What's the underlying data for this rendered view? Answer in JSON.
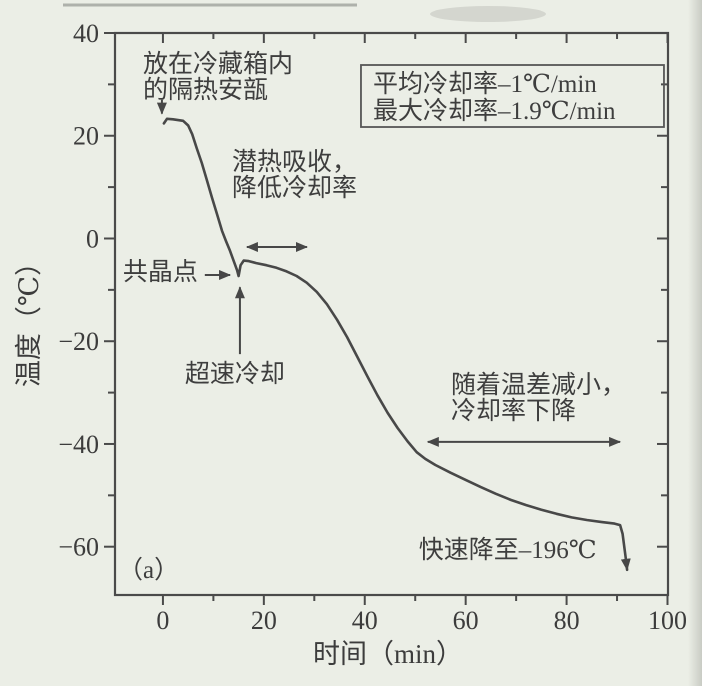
{
  "figure_label": "（a）",
  "chart_data": {
    "type": "line",
    "title": "",
    "xlabel": "时间（min）",
    "ylabel": "温度（℃）",
    "xlim": [
      -9.5,
      100.1
    ],
    "ylim": [
      -69.4,
      40
    ],
    "grid": false,
    "x_major_ticks": [
      0,
      20,
      40,
      60,
      80,
      100
    ],
    "x_minor_ticks": [
      10,
      30,
      50,
      70,
      90
    ],
    "y_major_ticks": [
      40,
      20,
      0,
      -20,
      -40,
      -60
    ],
    "y_minor_ticks": [
      30,
      10,
      -10,
      -30,
      -50
    ],
    "series": [
      {
        "name": "cooling-curve",
        "points": [
          [
            0.2,
            22.4
          ],
          [
            0.8,
            23.3
          ],
          [
            2.0,
            23.2
          ],
          [
            4.0,
            22.9
          ],
          [
            5.0,
            22.0
          ],
          [
            5.8,
            20.3
          ],
          [
            6.7,
            17.6
          ],
          [
            7.7,
            14.7
          ],
          [
            8.7,
            11.4
          ],
          [
            9.7,
            8.0
          ],
          [
            10.7,
            4.8
          ],
          [
            11.7,
            1.5
          ],
          [
            12.5,
            -0.5
          ],
          [
            13.3,
            -2.4
          ],
          [
            14.1,
            -4.6
          ],
          [
            14.7,
            -6.2
          ],
          [
            15.0,
            -7.3
          ],
          [
            15.4,
            -5.2
          ],
          [
            16.0,
            -4.3
          ],
          [
            17.0,
            -4.4
          ],
          [
            18.5,
            -4.8
          ],
          [
            20.5,
            -5.2
          ],
          [
            22.5,
            -5.7
          ],
          [
            24.5,
            -6.4
          ],
          [
            26.5,
            -7.3
          ],
          [
            28.5,
            -8.6
          ],
          [
            30.5,
            -10.4
          ],
          [
            32.5,
            -12.8
          ],
          [
            34.5,
            -15.8
          ],
          [
            36.5,
            -19.2
          ],
          [
            38.5,
            -23.0
          ],
          [
            40.5,
            -26.8
          ],
          [
            42.5,
            -30.5
          ],
          [
            44.5,
            -33.9
          ],
          [
            46.5,
            -36.9
          ],
          [
            48.5,
            -39.5
          ],
          [
            50.3,
            -41.6
          ],
          [
            52.0,
            -42.9
          ],
          [
            54.0,
            -44.1
          ],
          [
            57.0,
            -45.6
          ],
          [
            60.0,
            -47.0
          ],
          [
            63.0,
            -48.4
          ],
          [
            66.0,
            -49.7
          ],
          [
            69.0,
            -50.9
          ],
          [
            72.0,
            -51.9
          ],
          [
            75.0,
            -52.8
          ],
          [
            78.0,
            -53.6
          ],
          [
            81.0,
            -54.3
          ],
          [
            84.0,
            -54.8
          ],
          [
            87.0,
            -55.2
          ],
          [
            89.5,
            -55.5
          ],
          [
            90.6,
            -55.8
          ],
          [
            91.1,
            -57.5
          ],
          [
            91.7,
            -62.0
          ],
          [
            92.0,
            -64.5
          ]
        ],
        "end_arrow": true
      }
    ],
    "info_box": {
      "lines": [
        "平均冷却率–1℃/min",
        "最大冷却率–1.9℃/min"
      ],
      "x1": 39.25,
      "y1": 33.77,
      "x2": 99.3,
      "y2": 21.7
    },
    "annotations": [
      {
        "id": "ampoule-label",
        "lines": [
          "放在冷藏箱内",
          "的隔热安瓿"
        ],
        "x": -3.96,
        "y": 36.7,
        "arrow": {
          "x1": -0.2,
          "y1": 27.0,
          "x2": -0.2,
          "y2": 24.3
        }
      },
      {
        "id": "latent-heat-label",
        "lines": [
          "潜热吸收，",
          "降低冷却率"
        ],
        "x": 13.68,
        "y": 17.6
      },
      {
        "id": "latent-range-arrow",
        "type": "double-arrow",
        "x1": 16.65,
        "x2": 28.54,
        "y": -1.66
      },
      {
        "id": "eutectic-label",
        "lines": [
          "共晶点"
        ],
        "x": -7.93,
        "y": -3.8,
        "arrow": {
          "x1": 8.3,
          "y1": -7.1,
          "x2": 13.3,
          "y2": -7.1
        }
      },
      {
        "id": "supercool-arrow",
        "type": "arrow",
        "x1": 15.26,
        "y1": -22.5,
        "x2": 15.26,
        "y2": -9.5
      },
      {
        "id": "supercool-label",
        "lines": [
          "超速冷却"
        ],
        "x": 4.36,
        "y": -23.7
      },
      {
        "id": "tempdiff-label",
        "lines": [
          "随着温差减小，",
          "冷却率下降"
        ],
        "x": 57.1,
        "y": -25.8
      },
      {
        "id": "tempdiff-range-arrow",
        "type": "double-arrow",
        "x1": 52.5,
        "x2": 90.6,
        "y": -39.6
      },
      {
        "id": "final-drop-label",
        "lines": [
          "快速降至–196℃"
        ],
        "x": 50.7,
        "y": -57.9
      }
    ]
  }
}
